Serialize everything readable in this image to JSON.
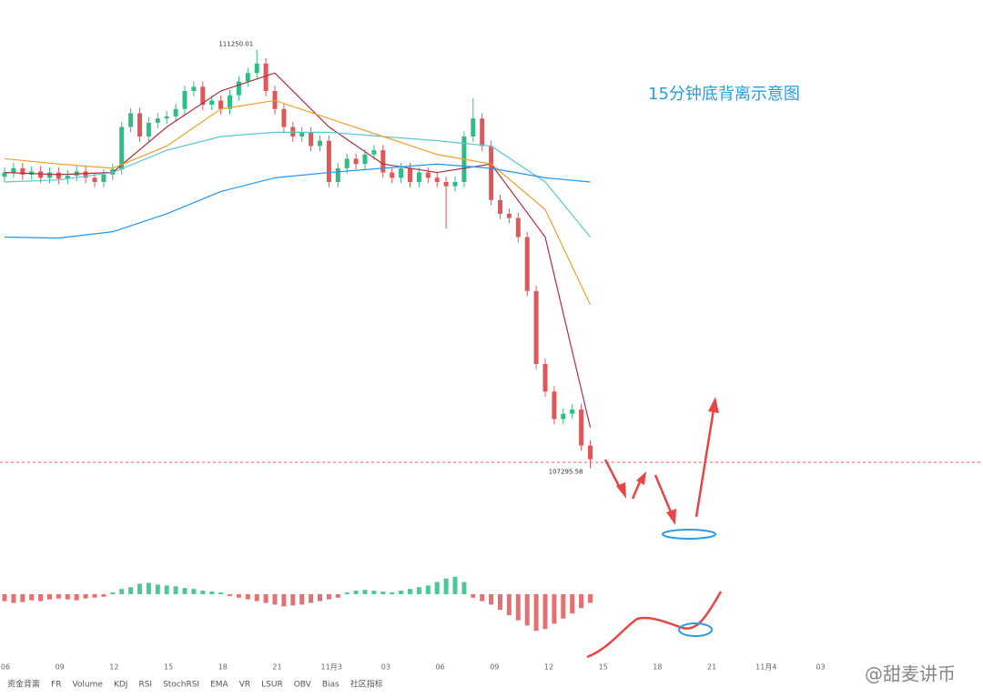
{
  "title": "15分钟底背离示意图",
  "watermark": "@甜麦讲币",
  "toolbar": [
    "资金背离",
    "FR",
    "Volume",
    "KDJ",
    "RSI",
    "StochRSI",
    "EMA",
    "VR",
    "LSUR",
    "OBV",
    "Bias",
    "社区指标"
  ],
  "chart_data": {
    "type": "candlestick",
    "ylim": [
      106560,
      111720
    ],
    "up_color": "#2ebd85",
    "down_color": "#e15759",
    "high_label": "111250.01",
    "low_label": "107295.58",
    "time_labels": [
      "06",
      "09",
      "12",
      "15",
      "18",
      "21",
      "11月3",
      "03",
      "06",
      "09",
      "12",
      "15",
      "18",
      "21",
      "11月4",
      "03"
    ],
    "open": [
      110050,
      110090,
      110130,
      110070,
      110100,
      110040,
      110090,
      110030,
      110060,
      110100,
      110040,
      110000,
      110070,
      110120,
      110520,
      110650,
      110430,
      110560,
      110600,
      110620,
      110690,
      110860,
      110900,
      110730,
      110770,
      110690,
      110820,
      110950,
      111030,
      111120,
      110860,
      110690,
      110520,
      110430,
      110470,
      110340,
      110390,
      110000,
      110130,
      110220,
      110170,
      110260,
      110300,
      110090,
      110040,
      110130,
      110000,
      110090,
      110040,
      110000,
      109960,
      110000,
      110430,
      110600,
      110340,
      109830,
      109700,
      109660,
      109480,
      108970,
      108280,
      108020,
      107760,
      107810,
      107850,
      107510
    ],
    "high": [
      110140,
      110180,
      110180,
      110150,
      110150,
      110140,
      110140,
      110110,
      110150,
      110150,
      110090,
      110120,
      110170,
      110570,
      110700,
      110700,
      110610,
      110650,
      110670,
      110740,
      110910,
      110950,
      110950,
      110820,
      110820,
      110870,
      111000,
      111080,
      111250.01,
      111170,
      110910,
      110740,
      110570,
      110520,
      110520,
      110440,
      110440,
      110180,
      110270,
      110270,
      110310,
      110350,
      110350,
      110140,
      110180,
      110180,
      110140,
      110140,
      110090,
      110050,
      110050,
      110480,
      110790,
      110650,
      110390,
      109880,
      109750,
      109710,
      109530,
      109020,
      108330,
      108070,
      107860,
      107900,
      107900,
      107560
    ],
    "low": [
      110000,
      110040,
      110020,
      110020,
      109990,
      109990,
      109980,
      109980,
      110010,
      109990,
      109950,
      109950,
      110020,
      110070,
      110470,
      110380,
      110380,
      110510,
      110550,
      110570,
      110640,
      110810,
      110680,
      110680,
      110640,
      110640,
      110770,
      110900,
      110980,
      110810,
      110640,
      110470,
      110380,
      110380,
      110290,
      110290,
      109950,
      109950,
      110080,
      110120,
      110120,
      110210,
      110040,
      109990,
      109990,
      109950,
      109950,
      109990,
      109950,
      109560,
      109910,
      109950,
      110380,
      110290,
      109780,
      109650,
      109610,
      109430,
      108920,
      108230,
      107970,
      107710,
      107710,
      107760,
      107460,
      107295.58
    ],
    "close": [
      110090,
      110130,
      110070,
      110100,
      110040,
      110090,
      110030,
      110060,
      110100,
      110040,
      110000,
      110070,
      110120,
      110520,
      110650,
      110430,
      110560,
      110600,
      110620,
      110690,
      110860,
      110900,
      110730,
      110770,
      110690,
      110820,
      110950,
      111030,
      111120,
      110860,
      110690,
      110520,
      110430,
      110470,
      110340,
      110390,
      110000,
      110130,
      110220,
      110170,
      110260,
      110300,
      110090,
      110040,
      110130,
      110000,
      110090,
      110040,
      110000,
      109960,
      110000,
      110430,
      110600,
      110340,
      109830,
      109700,
      109660,
      109480,
      108970,
      108280,
      108020,
      107760,
      107810,
      107850,
      107510,
      107380
    ],
    "ma_index": [
      0,
      6,
      12,
      18,
      24,
      30,
      36,
      42,
      48,
      54,
      60,
      65
    ],
    "moving_averages": [
      {
        "color": "#2196f3",
        "values": [
          109480,
          109470,
          109530,
          109700,
          109910,
          110040,
          110090,
          110130,
          110170,
          110130,
          110040,
          110000
        ]
      },
      {
        "color": "#f0a030",
        "values": [
          110220,
          110170,
          110130,
          110340,
          110690,
          110770,
          110600,
          110430,
          110260,
          110170,
          109740,
          108840
        ]
      },
      {
        "color": "#5bc8d0",
        "values": [
          110000,
          110020,
          110090,
          110300,
          110430,
          110470,
          110470,
          110430,
          110390,
          110340,
          110000,
          109480
        ]
      },
      {
        "color": "#b03040",
        "values": [
          110090,
          110070,
          110090,
          110520,
          110860,
          111030,
          110520,
          110170,
          110090,
          110170,
          109480,
          107680
        ]
      }
    ],
    "macd": {
      "ylim": [
        -70,
        50
      ],
      "values": [
        -8,
        -10,
        -9,
        -7,
        -8,
        -6,
        -5,
        -6,
        -7,
        -5,
        -4,
        -3,
        2,
        6,
        8,
        12,
        13,
        11,
        10,
        9,
        7,
        6,
        4,
        3,
        2,
        -2,
        -4,
        -6,
        -8,
        -10,
        -12,
        -14,
        -13,
        -12,
        -10,
        -8,
        -6,
        -4,
        2,
        4,
        5,
        4,
        3,
        2,
        4,
        6,
        8,
        10,
        14,
        18,
        20,
        14,
        -4,
        -8,
        -12,
        -18,
        -24,
        -30,
        -36,
        -42,
        -40,
        -34,
        -28,
        -22,
        -16,
        -10
      ]
    }
  }
}
